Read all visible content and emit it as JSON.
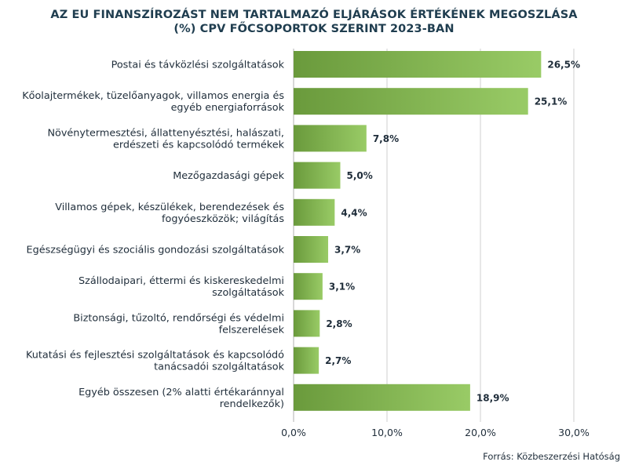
{
  "title_line1": "AZ EU FINANSZÍROZÁST NEM TARTALMAZÓ ELJÁRÁSOK ÉRTÉKÉNEK MEGOSZLÁSA",
  "title_line2": "(%) CPV FŐCSOPORTOK SZERINT 2023-BAN",
  "source": "Forrás: Közbeszerzési Hatóság",
  "colors": {
    "bar_dark": "#6a9a3c",
    "bar_light": "#99cb66",
    "text": "#1f2d3a",
    "grid": "#cfcfcf",
    "title": "#1f3d4f"
  },
  "chart_data": {
    "type": "bar",
    "orientation": "horizontal",
    "title": "AZ EU FINANSZÍROZÁST NEM TARTALMAZÓ ELJÁRÁSOK ÉRTÉKÉNEK MEGOSZLÁSA (%) CPV FŐCSOPORTOK SZERINT 2023-BAN",
    "categories": [
      [
        "Postai és távközlési szolgáltatások"
      ],
      [
        "Kőolajtermékek, tüzelőanyagok, villamos energia és",
        "egyéb energiaforrások"
      ],
      [
        "Növénytermesztési, állattenyésztési, halászati,",
        "erdészeti és kapcsolódó termékek"
      ],
      [
        "Mezőgazdasági gépek"
      ],
      [
        "Villamos gépek, készülékek, berendezések és",
        "fogyóeszközök; világítás"
      ],
      [
        "Egészségügyi és szociális gondozási szolgáltatások"
      ],
      [
        "Szállodaipari, éttermi és kiskereskedelmi",
        "szolgáltatások"
      ],
      [
        "Biztonsági, tűzoltó, rendőrségi és védelmi",
        "felszerelések"
      ],
      [
        "Kutatási és fejlesztési szolgáltatások és kapcsolódó",
        "tanácsadói szolgáltatások"
      ],
      [
        "Egyéb összesen (2% alatti értékaránnyal",
        "rendelkezők)"
      ]
    ],
    "values": [
      26.5,
      25.1,
      7.8,
      5.0,
      4.4,
      3.7,
      3.1,
      2.8,
      2.7,
      18.9
    ],
    "value_labels": [
      "26,5%",
      "25,1%",
      "7,8%",
      "5,0%",
      "4,4%",
      "3,7%",
      "3,1%",
      "2,8%",
      "2,7%",
      "18,9%"
    ],
    "xlim": [
      0,
      30
    ],
    "xticks": [
      0,
      10,
      20,
      30
    ],
    "xtick_labels": [
      "0,0%",
      "10,0%",
      "20,0%",
      "30,0%"
    ],
    "grid": true,
    "legend": "none"
  }
}
